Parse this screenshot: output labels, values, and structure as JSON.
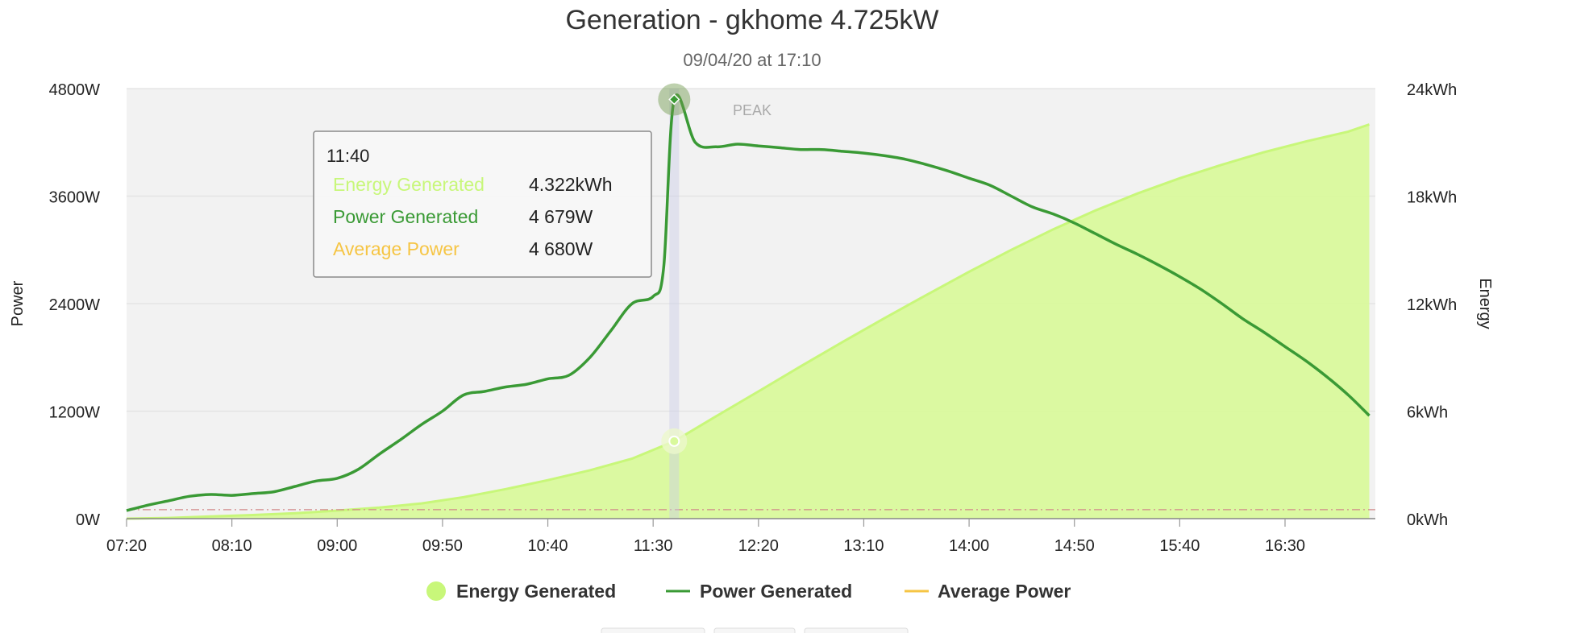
{
  "chart_data": {
    "type": "line",
    "title": "Generation - gkhome 4.725kW",
    "subtitle": "09/04/20 at 17:10",
    "ylabel_left": "Power",
    "ylabel_right": "Energy",
    "x_unit_minutes": 10,
    "x_start": "07:20",
    "x_ticks": [
      "07:20",
      "08:10",
      "09:00",
      "09:50",
      "10:40",
      "11:30",
      "12:20",
      "13:10",
      "14:00",
      "14:50",
      "15:40",
      "16:30"
    ],
    "y_left": {
      "min": 0,
      "max": 4800,
      "ticks": [
        0,
        1200,
        2400,
        3600,
        4800
      ],
      "tick_labels": [
        "0W",
        "1200W",
        "2400W",
        "3600W",
        "4800W"
      ]
    },
    "y_right": {
      "min": 0,
      "max": 24,
      "ticks": [
        0,
        6,
        12,
        18,
        24
      ],
      "tick_labels": [
        "0kWh",
        "6kWh",
        "12kWh",
        "18kWh",
        "24kWh"
      ]
    },
    "grid": true,
    "legend_position": "bottom",
    "peak_label": "PEAK",
    "series": [
      {
        "name": "Energy Generated",
        "kind": "area",
        "axis": "right",
        "color": "#c8f77a",
        "fill": "#d9f99c",
        "x": [
          "07:20",
          "07:40",
          "08:00",
          "08:20",
          "08:40",
          "09:00",
          "09:20",
          "09:40",
          "10:00",
          "10:20",
          "10:40",
          "11:00",
          "11:20",
          "11:40",
          "12:00",
          "12:20",
          "12:40",
          "13:00",
          "13:20",
          "13:40",
          "14:00",
          "14:20",
          "14:40",
          "15:00",
          "15:20",
          "15:40",
          "16:00",
          "16:20",
          "16:40",
          "17:00",
          "17:10"
        ],
        "values": [
          0.0,
          0.04,
          0.12,
          0.2,
          0.3,
          0.45,
          0.62,
          0.85,
          1.2,
          1.65,
          2.15,
          2.7,
          3.35,
          4.32,
          5.72,
          7.1,
          8.5,
          9.86,
          11.2,
          12.5,
          13.78,
          15.0,
          16.15,
          17.2,
          18.15,
          19.0,
          19.75,
          20.45,
          21.05,
          21.6,
          22.0
        ]
      },
      {
        "name": "Power Generated",
        "kind": "line",
        "axis": "left",
        "color": "#3a9a35",
        "x": [
          "07:20",
          "07:30",
          "07:40",
          "07:50",
          "08:00",
          "08:10",
          "08:20",
          "08:30",
          "08:40",
          "08:50",
          "09:00",
          "09:10",
          "09:20",
          "09:30",
          "09:40",
          "09:50",
          "10:00",
          "10:10",
          "10:20",
          "10:30",
          "10:40",
          "10:50",
          "11:00",
          "11:10",
          "11:20",
          "11:30",
          "11:35",
          "11:40",
          "11:50",
          "12:00",
          "12:10",
          "12:20",
          "12:30",
          "12:40",
          "12:50",
          "13:00",
          "13:10",
          "13:20",
          "13:30",
          "13:40",
          "13:50",
          "14:00",
          "14:10",
          "14:20",
          "14:30",
          "14:40",
          "14:50",
          "15:00",
          "15:10",
          "15:20",
          "15:30",
          "15:40",
          "15:50",
          "16:00",
          "16:10",
          "16:20",
          "16:30",
          "16:40",
          "16:50",
          "17:00",
          "17:10"
        ],
        "values": [
          90,
          150,
          200,
          250,
          270,
          260,
          280,
          300,
          360,
          420,
          450,
          550,
          720,
          880,
          1050,
          1200,
          1380,
          1420,
          1470,
          1500,
          1560,
          1600,
          1800,
          2100,
          2400,
          2480,
          2800,
          4679,
          4200,
          4150,
          4180,
          4160,
          4140,
          4120,
          4120,
          4100,
          4080,
          4050,
          4010,
          3950,
          3880,
          3800,
          3720,
          3600,
          3480,
          3400,
          3300,
          3180,
          3060,
          2950,
          2830,
          2700,
          2560,
          2400,
          2230,
          2080,
          1920,
          1760,
          1580,
          1380,
          1150
        ]
      },
      {
        "name": "Average Power",
        "kind": "line",
        "axis": "left",
        "color": "#f6c544",
        "values": []
      }
    ],
    "tooltip": {
      "time": "11:40",
      "rows": [
        {
          "label": "Energy Generated",
          "value": "4.322kWh",
          "color": "#c8f77a"
        },
        {
          "label": "Power Generated",
          "value": "4 679W",
          "color": "#3a9a35"
        },
        {
          "label": "Average Power",
          "value": "4 680W",
          "color": "#f6c544"
        }
      ]
    },
    "reference_line_value": 100
  }
}
